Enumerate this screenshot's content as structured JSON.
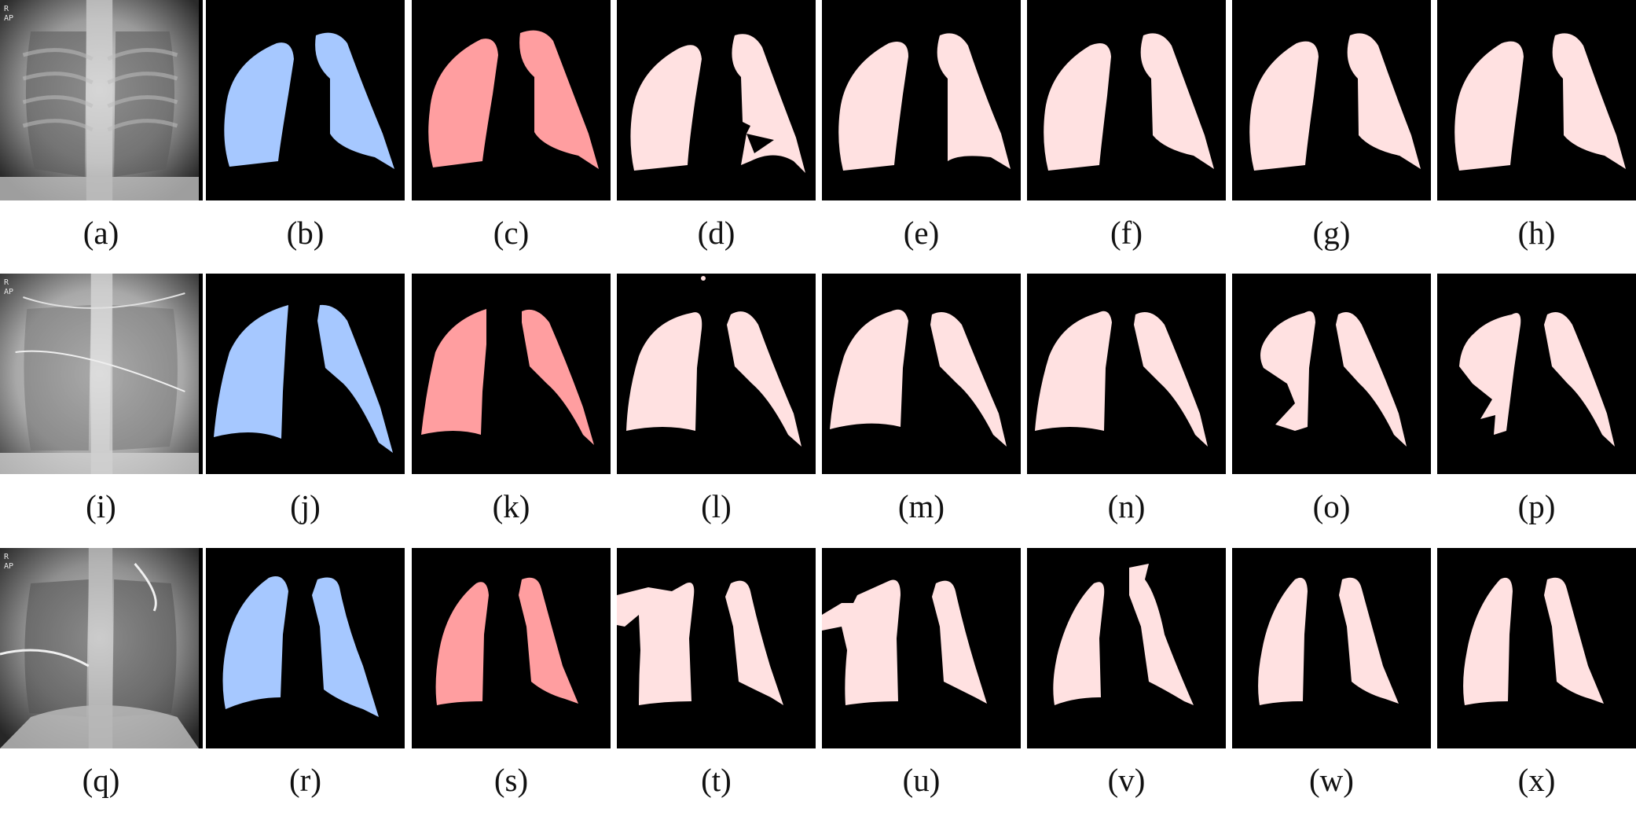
{
  "rows": [
    {
      "xray_tags": [
        "R",
        "AP"
      ],
      "labels": [
        "(a)",
        "(b)",
        "(c)",
        "(d)",
        "(e)",
        "(f)",
        "(g)",
        "(h)"
      ]
    },
    {
      "xray_tags": [
        "R",
        "AP"
      ],
      "labels": [
        "(i)",
        "(j)",
        "(k)",
        "(l)",
        "(m)",
        "(n)",
        "(o)",
        "(p)"
      ]
    },
    {
      "xray_tags": [
        "R",
        "AP"
      ],
      "labels": [
        "(q)",
        "(r)",
        "(s)",
        "(t)",
        "(u)",
        "(v)",
        "(w)",
        "(x)"
      ]
    }
  ],
  "colors": {
    "ground_truth": "#a6c8ff",
    "reference": "#ff9ea0",
    "prediction": "#ffe1e1",
    "background": "#000000"
  }
}
